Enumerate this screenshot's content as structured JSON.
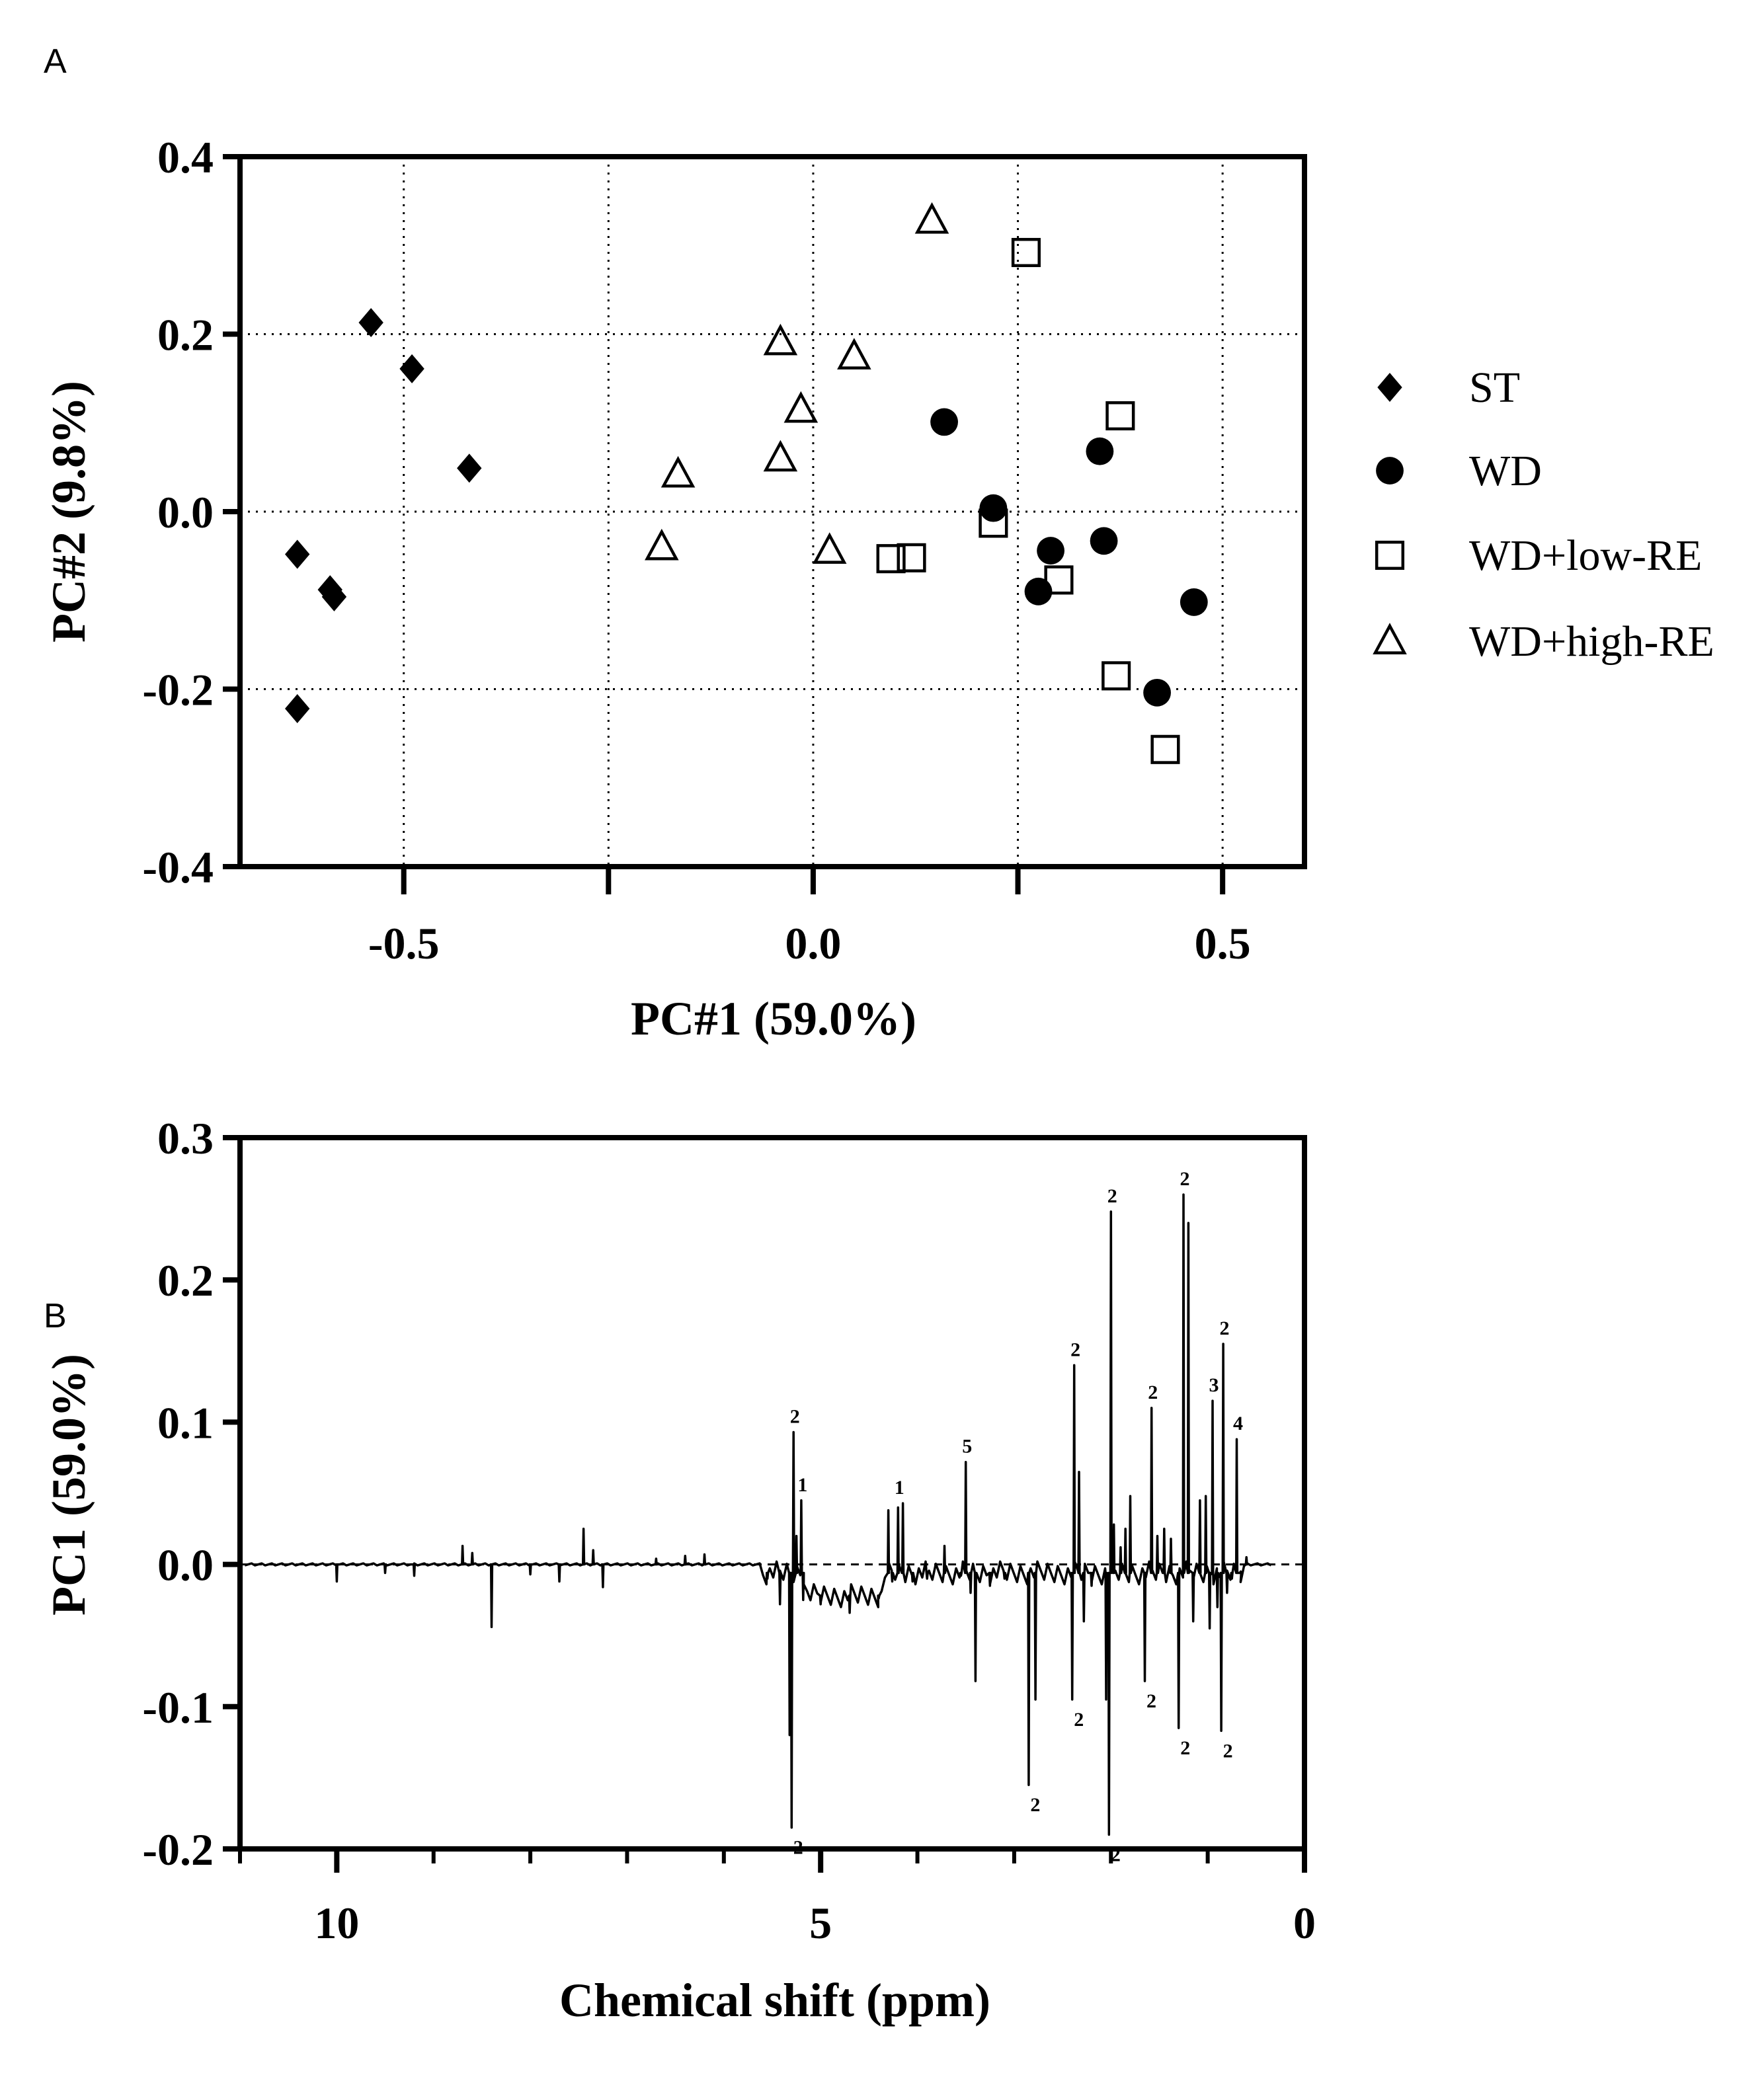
{
  "chart_data": [
    {
      "panel": "A",
      "type": "scatter",
      "xlabel": "PC#1 (59.0%)",
      "ylabel": "PC#2 (9.8%)",
      "xlim": [
        -0.7,
        0.6
      ],
      "ylim": [
        -0.4,
        0.4
      ],
      "xticks": [
        -0.5,
        0.0,
        0.5
      ],
      "xtick_labels": [
        "-0.5",
        "0.0",
        "0.5"
      ],
      "yticks": [
        -0.4,
        -0.2,
        0.0,
        0.2,
        0.4
      ],
      "ytick_labels": [
        "-0.4",
        "-0.2",
        "0.0",
        "0.2",
        "0.4"
      ],
      "grid": true,
      "legend_position": "right",
      "series": [
        {
          "name": "ST",
          "marker": "diamond-filled",
          "points": [
            [
              -0.54,
              0.213
            ],
            [
              -0.49,
              0.161
            ],
            [
              -0.42,
              0.049
            ],
            [
              -0.63,
              -0.048
            ],
            [
              -0.59,
              -0.088
            ],
            [
              -0.585,
              -0.096
            ],
            [
              -0.63,
              -0.222
            ]
          ]
        },
        {
          "name": "WD",
          "marker": "circle-filled",
          "points": [
            [
              0.16,
              0.101
            ],
            [
              0.22,
              0.004
            ],
            [
              0.35,
              0.068
            ],
            [
              0.29,
              -0.044
            ],
            [
              0.355,
              -0.033
            ],
            [
              0.275,
              -0.09
            ],
            [
              0.465,
              -0.102
            ],
            [
              0.42,
              -0.204
            ]
          ]
        },
        {
          "name": "WD+low-RE",
          "marker": "square-open",
          "points": [
            [
              0.26,
              0.292
            ],
            [
              0.375,
              0.108
            ],
            [
              0.22,
              -0.013
            ],
            [
              0.095,
              -0.053
            ],
            [
              0.12,
              -0.052
            ],
            [
              0.3,
              -0.077
            ],
            [
              0.37,
              -0.185
            ],
            [
              0.43,
              -0.268
            ]
          ]
        },
        {
          "name": "WD+high-RE",
          "marker": "triangle-open",
          "points": [
            [
              0.145,
              0.328
            ],
            [
              -0.04,
              0.191
            ],
            [
              0.05,
              0.175
            ],
            [
              -0.015,
              0.115
            ],
            [
              -0.04,
              0.06
            ],
            [
              -0.165,
              0.042
            ],
            [
              -0.185,
              -0.04
            ],
            [
              0.02,
              -0.044
            ]
          ]
        }
      ]
    },
    {
      "panel": "B",
      "type": "line",
      "xlabel": "Chemical shift (ppm)",
      "ylabel": "PC1 (59.0%)",
      "xlim": [
        11,
        0
      ],
      "ylim": [
        -0.2,
        0.3
      ],
      "xticks": [
        10,
        5,
        0
      ],
      "xtick_labels": [
        "10",
        "5",
        "0"
      ],
      "xminor_ticks": [
        11,
        9,
        8,
        7,
        6,
        4,
        3,
        2,
        1
      ],
      "yticks": [
        -0.2,
        -0.1,
        0.0,
        0.1,
        0.2,
        0.3
      ],
      "ytick_labels": [
        "-0.2",
        "-0.1",
        "0.0",
        "0.1",
        "0.2",
        "0.3"
      ],
      "zero_line": "dashed",
      "features": [
        [
          10.0,
          -0.012
        ],
        [
          9.5,
          -0.006
        ],
        [
          9.2,
          -0.008
        ],
        [
          8.7,
          0.013
        ],
        [
          8.6,
          0.008
        ],
        [
          8.4,
          -0.044
        ],
        [
          8.0,
          -0.007
        ],
        [
          7.7,
          -0.012
        ],
        [
          7.45,
          0.025
        ],
        [
          7.35,
          0.01
        ],
        [
          7.25,
          -0.016
        ],
        [
          6.7,
          0.004
        ],
        [
          6.4,
          0.006
        ],
        [
          6.2,
          0.007
        ],
        [
          5.55,
          -0.01
        ],
        [
          5.42,
          -0.028
        ],
        [
          5.32,
          -0.12
        ],
        [
          5.3,
          -0.185
        ],
        [
          5.28,
          0.093
        ],
        [
          5.25,
          0.02
        ],
        [
          5.2,
          0.045
        ],
        [
          5.18,
          -0.025
        ],
        [
          5.0,
          -0.028
        ],
        [
          4.7,
          -0.034
        ],
        [
          4.4,
          -0.024
        ],
        [
          4.3,
          0.038
        ],
        [
          4.26,
          -0.012
        ],
        [
          4.2,
          0.04
        ],
        [
          4.15,
          0.043
        ],
        [
          4.05,
          -0.012
        ],
        [
          3.9,
          -0.01
        ],
        [
          3.72,
          0.013
        ],
        [
          3.55,
          -0.008
        ],
        [
          3.5,
          0.072
        ],
        [
          3.45,
          -0.02
        ],
        [
          3.4,
          -0.082
        ],
        [
          3.25,
          -0.015
        ],
        [
          3.1,
          -0.01
        ],
        [
          2.85,
          -0.155
        ],
        [
          2.78,
          -0.095
        ],
        [
          2.4,
          -0.095
        ],
        [
          2.38,
          0.14
        ],
        [
          2.33,
          0.065
        ],
        [
          2.28,
          -0.04
        ],
        [
          2.2,
          -0.015
        ],
        [
          2.05,
          -0.095
        ],
        [
          2.02,
          -0.19
        ],
        [
          2.0,
          0.248
        ],
        [
          1.97,
          0.028
        ],
        [
          1.9,
          0.012
        ],
        [
          1.85,
          0.025
        ],
        [
          1.8,
          0.048
        ],
        [
          1.65,
          -0.082
        ],
        [
          1.58,
          0.11
        ],
        [
          1.52,
          0.02
        ],
        [
          1.45,
          0.025
        ],
        [
          1.38,
          0.018
        ],
        [
          1.3,
          -0.115
        ],
        [
          1.25,
          0.26
        ],
        [
          1.2,
          0.24
        ],
        [
          1.15,
          -0.04
        ],
        [
          1.08,
          0.045
        ],
        [
          1.02,
          0.048
        ],
        [
          0.98,
          -0.045
        ],
        [
          0.95,
          0.115
        ],
        [
          0.9,
          -0.03
        ],
        [
          0.86,
          -0.117
        ],
        [
          0.84,
          0.155
        ],
        [
          0.8,
          -0.02
        ],
        [
          0.75,
          -0.01
        ],
        [
          0.7,
          0.088
        ],
        [
          0.66,
          -0.005
        ],
        [
          0.6,
          0.005
        ]
      ],
      "annotations": [
        {
          "text": "2",
          "x": 5.28,
          "y": 0.093,
          "side": "above"
        },
        {
          "text": "1",
          "x": 5.2,
          "y": 0.045,
          "side": "above"
        },
        {
          "text": "2",
          "x": 5.3,
          "y": -0.185,
          "side": "below"
        },
        {
          "text": "1",
          "x": 4.2,
          "y": 0.043,
          "side": "above"
        },
        {
          "text": "5",
          "x": 3.5,
          "y": 0.072,
          "side": "above"
        },
        {
          "text": "2",
          "x": 2.85,
          "y": -0.155,
          "side": "below"
        },
        {
          "text": "2",
          "x": 2.38,
          "y": 0.14,
          "side": "above"
        },
        {
          "text": "2",
          "x": 2.4,
          "y": -0.095,
          "side": "below"
        },
        {
          "text": "2",
          "x": 2.0,
          "y": 0.248,
          "side": "above"
        },
        {
          "text": "2",
          "x": 2.02,
          "y": -0.19,
          "side": "below"
        },
        {
          "text": "2",
          "x": 1.58,
          "y": 0.11,
          "side": "above"
        },
        {
          "text": "2",
          "x": 1.65,
          "y": -0.082,
          "side": "below"
        },
        {
          "text": "2",
          "x": 1.25,
          "y": 0.26,
          "side": "above"
        },
        {
          "text": "2",
          "x": 1.3,
          "y": -0.115,
          "side": "below"
        },
        {
          "text": "3",
          "x": 0.95,
          "y": 0.115,
          "side": "above"
        },
        {
          "text": "2",
          "x": 0.84,
          "y": 0.155,
          "side": "above"
        },
        {
          "text": "2",
          "x": 0.86,
          "y": -0.117,
          "side": "below"
        },
        {
          "text": "4",
          "x": 0.7,
          "y": 0.088,
          "side": "above"
        }
      ]
    }
  ],
  "panel_labels": {
    "a": "A",
    "b": "B"
  }
}
